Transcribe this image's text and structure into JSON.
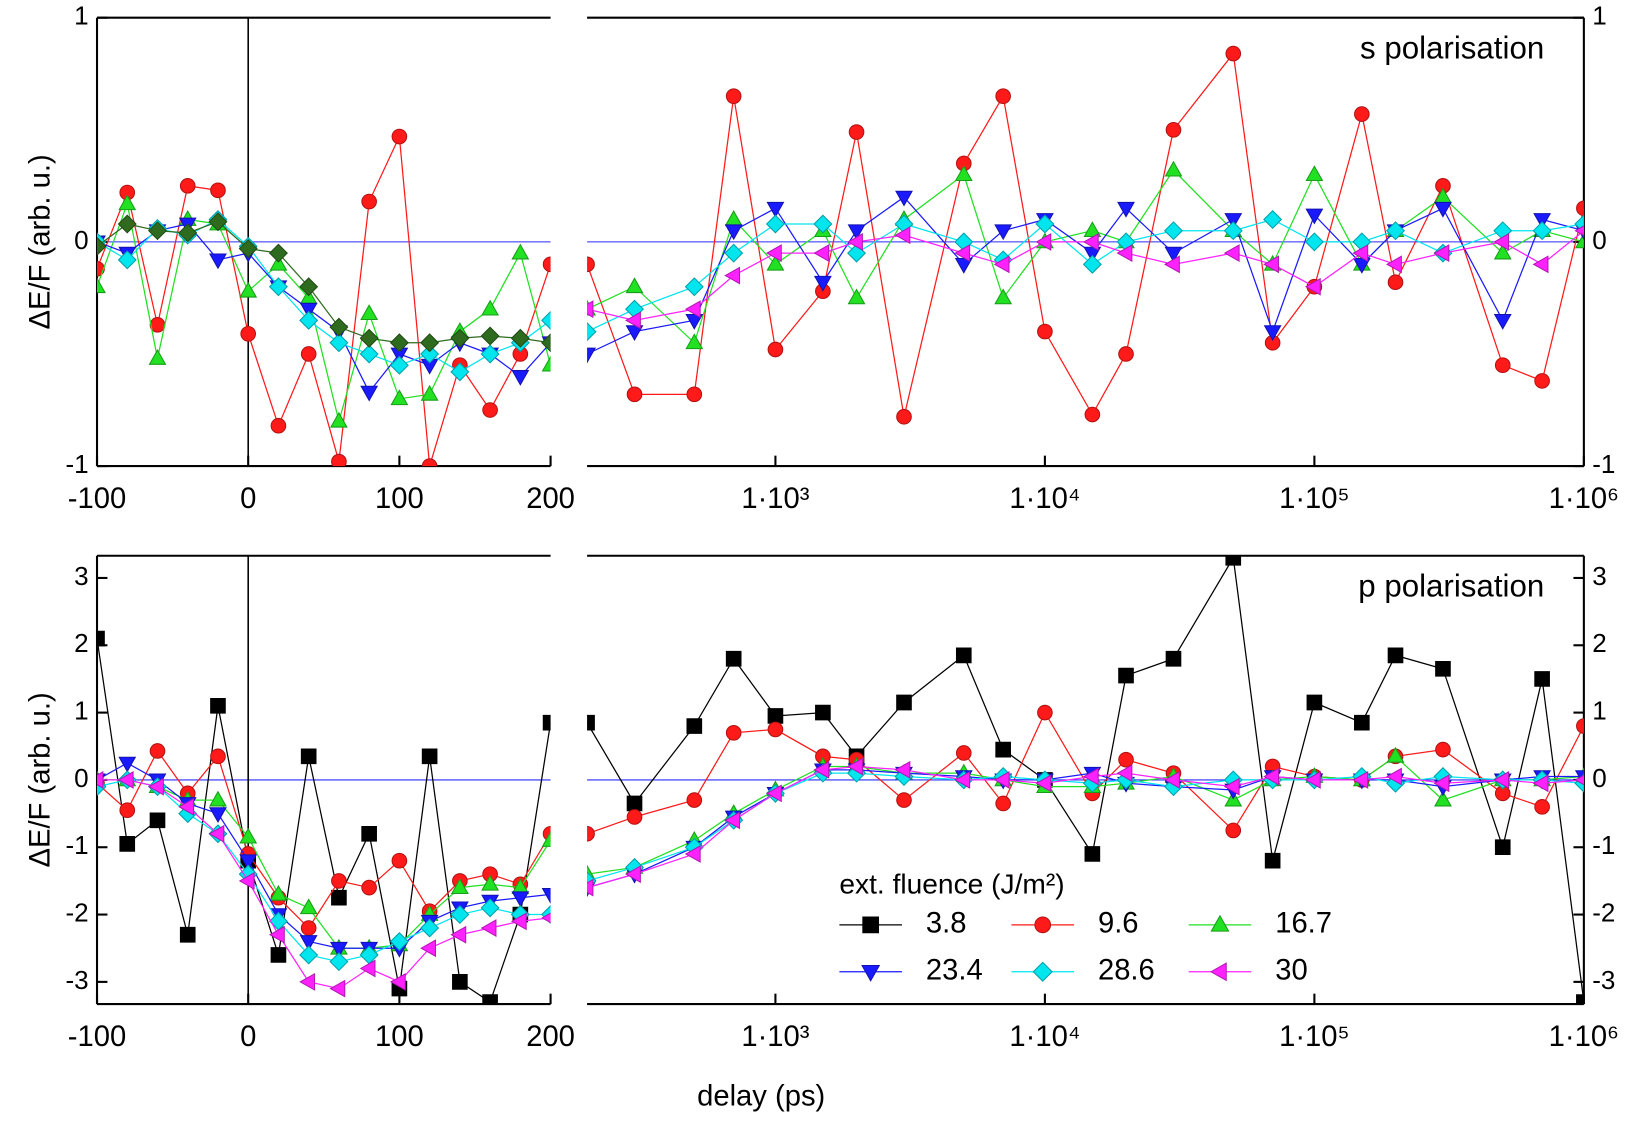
{
  "x_label": "delay (ps)",
  "chart_data": [
    {
      "type": "line",
      "xscale": "linear",
      "yaxis_side": "left",
      "y_label": "ΔE/F (arb. u.)",
      "x": [
        -100,
        -80,
        -60,
        -40,
        -20,
        0,
        20,
        40,
        60,
        80,
        100,
        120,
        140,
        160,
        180,
        200
      ],
      "xlim": [
        -100,
        200
      ],
      "xticks": [
        -100,
        0,
        100,
        200
      ],
      "ylim": [
        -1,
        1
      ],
      "yticks": [
        -1,
        0,
        1
      ],
      "series": [
        {
          "color": "#ff1a1a",
          "marker": "circle",
          "values": [
            -0.12,
            0.22,
            -0.37,
            0.25,
            0.23,
            -0.41,
            -0.82,
            -0.5,
            -0.98,
            0.18,
            0.47,
            -1.0,
            -0.55,
            -0.75,
            -0.5,
            -0.1
          ]
        },
        {
          "color": "#22e022",
          "marker": "triangle-up",
          "values": [
            -0.2,
            0.17,
            -0.52,
            0.1,
            0.08,
            -0.22,
            -0.1,
            -0.25,
            -0.8,
            -0.32,
            -0.7,
            -0.68,
            -0.4,
            -0.3,
            -0.05,
            -0.55
          ]
        },
        {
          "color": "#1a1aff",
          "marker": "triangle-down",
          "values": [
            0.0,
            -0.05,
            0.05,
            0.08,
            -0.08,
            -0.05,
            -0.2,
            -0.3,
            -0.4,
            -0.67,
            -0.5,
            -0.55,
            -0.45,
            -0.5,
            -0.6,
            -0.45
          ]
        },
        {
          "color": "#00e5ee",
          "marker": "diamond",
          "values": [
            0.0,
            -0.08,
            0.06,
            0.03,
            0.1,
            -0.02,
            -0.2,
            -0.35,
            -0.45,
            -0.5,
            -0.55,
            -0.5,
            -0.58,
            -0.5,
            -0.45,
            -0.35
          ]
        },
        {
          "color": "#2f6b1f",
          "marker": "diamond",
          "values": [
            -0.02,
            0.08,
            0.05,
            0.04,
            0.09,
            -0.03,
            -0.05,
            -0.2,
            -0.38,
            -0.43,
            -0.45,
            -0.45,
            -0.43,
            -0.42,
            -0.43,
            -0.45
          ]
        }
      ]
    },
    {
      "type": "line",
      "xscale": "log",
      "yaxis_side": "right",
      "annotation": "s polarisation",
      "x": [
        200,
        300,
        500,
        700,
        1000,
        1500,
        2000,
        3000,
        5000,
        7000,
        10000,
        15000,
        20000,
        30000,
        50000,
        70000,
        100000,
        150000,
        200000,
        300000,
        500000,
        700000,
        1000000
      ],
      "xlim": [
        200,
        1000000
      ],
      "xticks": [
        {
          "value": 1000,
          "label": "1·10³"
        },
        {
          "value": 10000,
          "label": "1·10⁴"
        },
        {
          "value": 100000,
          "label": "1·10⁵"
        },
        {
          "value": 1000000,
          "label": "1·10⁶"
        }
      ],
      "ylim": [
        -1,
        1
      ],
      "yticks": [
        -1,
        0,
        1
      ],
      "series": [
        {
          "color": "#ff1a1a",
          "marker": "circle",
          "values": [
            -0.1,
            -0.68,
            -0.68,
            0.65,
            -0.48,
            -0.22,
            0.49,
            -0.78,
            0.35,
            0.65,
            -0.4,
            -0.77,
            -0.5,
            0.5,
            0.84,
            -0.45,
            -0.2,
            0.57,
            -0.18,
            0.25,
            -0.55,
            -0.62,
            0.15
          ]
        },
        {
          "color": "#22e022",
          "marker": "triangle-up",
          "values": [
            -0.3,
            -0.2,
            -0.45,
            0.1,
            -0.1,
            0.05,
            -0.25,
            0.1,
            0.3,
            -0.25,
            0.0,
            0.05,
            0.0,
            0.32,
            0.05,
            -0.1,
            0.3,
            -0.1,
            0.05,
            0.2,
            -0.05,
            0.05,
            0.0
          ]
        },
        {
          "color": "#1a1aff",
          "marker": "triangle-down",
          "values": [
            -0.5,
            -0.4,
            -0.35,
            0.05,
            0.15,
            -0.18,
            0.05,
            0.2,
            -0.1,
            0.05,
            0.1,
            -0.05,
            0.15,
            -0.05,
            0.1,
            -0.4,
            0.12,
            -0.1,
            0.05,
            0.15,
            -0.35,
            0.1,
            0.05
          ]
        },
        {
          "color": "#00e5ee",
          "marker": "diamond",
          "values": [
            -0.4,
            -0.3,
            -0.2,
            -0.05,
            0.08,
            0.08,
            -0.05,
            0.08,
            0.0,
            -0.08,
            0.08,
            -0.1,
            0.0,
            0.05,
            0.05,
            0.1,
            0.0,
            0.0,
            0.05,
            -0.05,
            0.05,
            0.05,
            0.08
          ]
        },
        {
          "color": "#ff22ff",
          "marker": "triangle-left",
          "values": [
            -0.3,
            -0.35,
            -0.3,
            -0.15,
            -0.05,
            -0.05,
            0.0,
            0.03,
            -0.05,
            -0.1,
            0.0,
            0.0,
            -0.05,
            -0.1,
            -0.05,
            -0.1,
            -0.2,
            -0.05,
            -0.1,
            -0.05,
            0.0,
            -0.1,
            0.05
          ]
        }
      ]
    },
    {
      "type": "line",
      "xscale": "linear",
      "yaxis_side": "left",
      "y_label": "ΔE/F (arb. u.)",
      "x": [
        -100,
        -80,
        -60,
        -40,
        -20,
        0,
        20,
        40,
        60,
        80,
        100,
        120,
        140,
        160,
        180,
        200
      ],
      "xlim": [
        -100,
        200
      ],
      "xticks": [
        -100,
        0,
        100,
        200
      ],
      "ylim": [
        -3.33,
        3.33
      ],
      "yticks": [
        -3,
        -2,
        -1,
        0,
        1,
        2,
        3
      ],
      "series": [
        {
          "color": "#000000",
          "marker": "square",
          "values": [
            2.1,
            -0.95,
            -0.6,
            -2.3,
            1.1,
            -1.2,
            -2.6,
            0.35,
            -1.75,
            -0.8,
            -3.1,
            0.35,
            -3.0,
            -3.3,
            -2.0,
            0.85
          ]
        },
        {
          "color": "#ff1a1a",
          "marker": "circle",
          "values": [
            -0.05,
            -0.45,
            0.43,
            -0.2,
            0.35,
            -1.1,
            -1.75,
            -2.2,
            -1.5,
            -1.6,
            -1.2,
            -1.95,
            -1.5,
            -1.4,
            -1.55,
            -0.8
          ]
        },
        {
          "color": "#22e022",
          "marker": "triangle-up",
          "values": [
            0.0,
            0.0,
            -0.1,
            -0.3,
            -0.3,
            -0.85,
            -1.7,
            -1.9,
            -2.5,
            -2.5,
            -2.45,
            -2.0,
            -1.6,
            -1.55,
            -1.6,
            -0.9
          ]
        },
        {
          "color": "#1a1aff",
          "marker": "triangle-down",
          "values": [
            0.0,
            0.25,
            0.0,
            -0.35,
            -0.5,
            -1.2,
            -2.0,
            -2.4,
            -2.5,
            -2.5,
            -2.5,
            -2.1,
            -1.9,
            -1.8,
            -1.75,
            -1.7
          ]
        },
        {
          "color": "#00e5ee",
          "marker": "diamond",
          "values": [
            -0.1,
            0.0,
            -0.1,
            -0.5,
            -0.8,
            -1.4,
            -2.1,
            -2.6,
            -2.7,
            -2.6,
            -2.4,
            -2.2,
            -2.0,
            -1.9,
            -2.0,
            -2.0
          ]
        },
        {
          "color": "#ff22ff",
          "marker": "triangle-left",
          "values": [
            0.0,
            0.0,
            -0.1,
            -0.4,
            -0.8,
            -1.5,
            -2.3,
            -3.0,
            -3.1,
            -2.8,
            -3.0,
            -2.5,
            -2.3,
            -2.2,
            -2.1,
            -2.05
          ]
        }
      ]
    },
    {
      "type": "line",
      "xscale": "log",
      "yaxis_side": "right",
      "annotation": "p polarisation",
      "legend": "bottom",
      "legend_title": "ext. fluence (J/m²)",
      "x": [
        200,
        300,
        500,
        700,
        1000,
        1500,
        2000,
        3000,
        5000,
        7000,
        10000,
        15000,
        20000,
        30000,
        50000,
        70000,
        100000,
        150000,
        200000,
        300000,
        500000,
        700000,
        1000000
      ],
      "xlim": [
        200,
        1000000
      ],
      "xticks": [
        {
          "value": 1000,
          "label": "1·10³"
        },
        {
          "value": 10000,
          "label": "1·10⁴"
        },
        {
          "value": 100000,
          "label": "1·10⁵"
        },
        {
          "value": 1000000,
          "label": "1·10⁶"
        }
      ],
      "ylim": [
        -3.33,
        3.33
      ],
      "yticks": [
        -3,
        -2,
        -1,
        0,
        1,
        2,
        3
      ],
      "series": [
        {
          "name": "3.8",
          "color": "#000000",
          "marker": "square",
          "values": [
            0.85,
            -0.35,
            0.8,
            1.8,
            0.95,
            1.0,
            0.35,
            1.15,
            1.85,
            0.45,
            0.0,
            -1.1,
            1.55,
            1.8,
            3.3,
            -1.2,
            1.15,
            0.85,
            1.85,
            1.65,
            -1.0,
            1.5,
            -3.3
          ]
        },
        {
          "name": "9.6",
          "color": "#ff1a1a",
          "marker": "circle",
          "values": [
            -0.8,
            -0.55,
            -0.3,
            0.7,
            0.75,
            0.35,
            0.3,
            -0.3,
            0.4,
            -0.35,
            1.0,
            -0.2,
            0.3,
            0.1,
            -0.75,
            0.2,
            0.05,
            0.0,
            0.35,
            0.45,
            -0.2,
            -0.4,
            0.8
          ]
        },
        {
          "name": "16.7",
          "color": "#22e022",
          "marker": "triangle-up",
          "values": [
            -1.4,
            -1.3,
            -0.9,
            -0.5,
            -0.15,
            0.2,
            0.2,
            0.1,
            0.1,
            0.0,
            -0.1,
            -0.1,
            -0.05,
            0.05,
            -0.3,
            0.0,
            0.05,
            0.0,
            0.35,
            -0.3,
            0.0,
            0.0,
            0.05
          ]
        },
        {
          "name": "23.4",
          "color": "#1a1aff",
          "marker": "triangle-down",
          "values": [
            -1.6,
            -1.4,
            -1.0,
            -0.55,
            -0.2,
            0.15,
            0.15,
            0.1,
            0.05,
            0.0,
            0.0,
            0.1,
            -0.05,
            -0.1,
            -0.15,
            0.05,
            0.0,
            0.0,
            0.0,
            -0.1,
            0.0,
            0.05,
            0.05
          ]
        },
        {
          "name": "28.6",
          "color": "#00e5ee",
          "marker": "diamond",
          "values": [
            -1.5,
            -1.3,
            -1.0,
            -0.6,
            -0.2,
            0.1,
            0.1,
            0.05,
            0.0,
            0.05,
            0.0,
            -0.05,
            0.0,
            -0.1,
            0.0,
            0.0,
            0.0,
            0.05,
            -0.05,
            0.05,
            0.0,
            0.0,
            -0.05
          ]
        },
        {
          "name": "30",
          "color": "#ff22ff",
          "marker": "triangle-left",
          "values": [
            -1.6,
            -1.4,
            -1.1,
            -0.6,
            -0.2,
            0.15,
            0.2,
            0.15,
            0.0,
            0.0,
            -0.05,
            0.05,
            0.1,
            0.0,
            -0.1,
            0.05,
            0.0,
            0.0,
            0.05,
            -0.05,
            0.0,
            -0.05,
            0.0
          ]
        }
      ]
    }
  ]
}
